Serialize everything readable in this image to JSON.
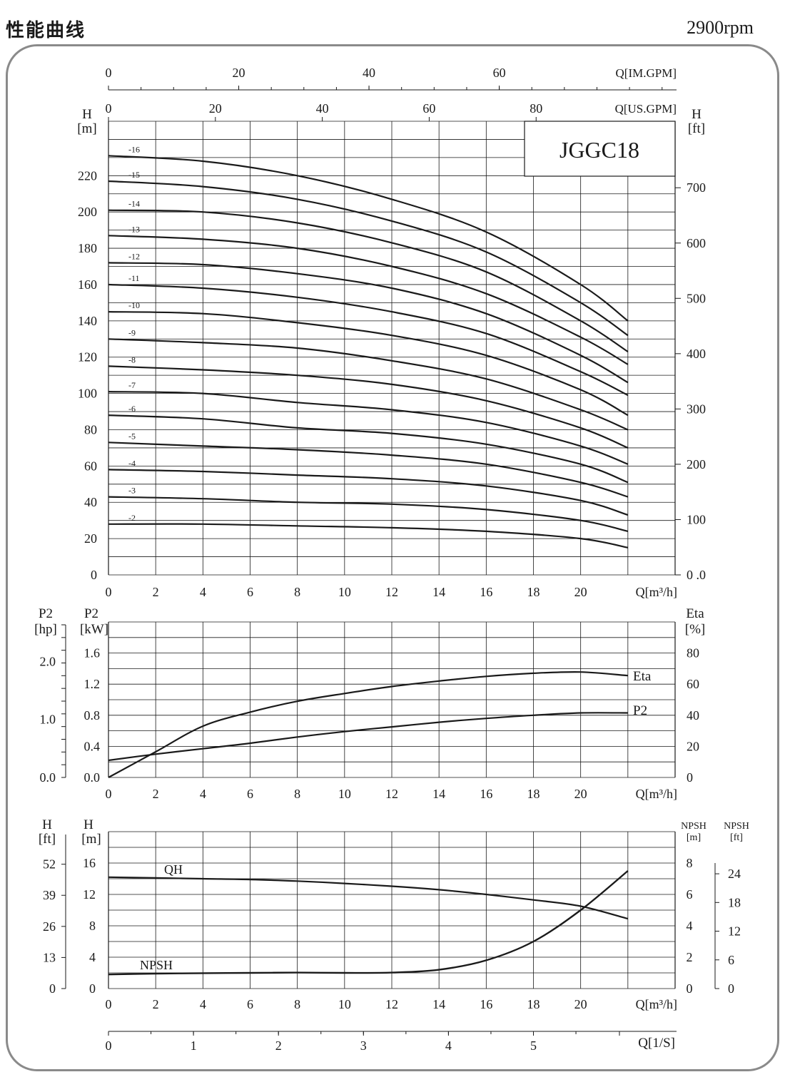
{
  "page": {
    "title": "性能曲线",
    "speed": "2900rpm"
  },
  "chart_data": [
    {
      "type": "line",
      "title": "JGGC18",
      "x_axis_label": "Q[m³/h]",
      "y_left_label": "H",
      "y_left_unit": "[m]",
      "y_right_label": "H",
      "y_right_unit": "[ft]",
      "top_axis_1_label": "Q[IM.GPM]",
      "top_axis_1_ticks": [
        "0",
        "20",
        "40",
        "60"
      ],
      "top_axis_2_label": "Q[US.GPM]",
      "top_axis_2_ticks": [
        "0",
        "20",
        "40",
        "60",
        "80"
      ],
      "xlim": [
        0,
        22
      ],
      "ylim": [
        0,
        250
      ],
      "x_ticks": [
        "0",
        "2",
        "4",
        "6",
        "8",
        "10",
        "12",
        "14",
        "16",
        "18",
        "20"
      ],
      "y_left_ticks": [
        "0",
        "20",
        "40",
        "60",
        "80",
        "100",
        "120",
        "140",
        "160",
        "180",
        "200",
        "220"
      ],
      "y_right_ticks": [
        "0 .0",
        "100",
        "200",
        "300",
        "400",
        "500",
        "600",
        "700"
      ],
      "x": [
        0,
        4,
        8,
        12,
        16,
        20,
        22
      ],
      "series": [
        {
          "name": "-16",
          "values": [
            231,
            228,
            220,
            207,
            189,
            160,
            140
          ]
        },
        {
          "name": "-15",
          "values": [
            217,
            214,
            207,
            195,
            178,
            150,
            132
          ]
        },
        {
          "name": "-14",
          "values": [
            201,
            200,
            194,
            183,
            167,
            140,
            123
          ]
        },
        {
          "name": "-13",
          "values": [
            187,
            185,
            180,
            170,
            155,
            131,
            116
          ]
        },
        {
          "name": "-12",
          "values": [
            172,
            171,
            166,
            158,
            144,
            121,
            106
          ]
        },
        {
          "name": "-11",
          "values": [
            160,
            158,
            153,
            145,
            133,
            112,
            99
          ]
        },
        {
          "name": "-10",
          "values": [
            145,
            144,
            139,
            132,
            121,
            102,
            88
          ]
        },
        {
          "name": "-9",
          "values": [
            130,
            128,
            125,
            118,
            108,
            91,
            80
          ]
        },
        {
          "name": "-8",
          "values": [
            115,
            113,
            110,
            105,
            96,
            81,
            70
          ]
        },
        {
          "name": "-7",
          "values": [
            101,
            100,
            95,
            91,
            84,
            71,
            61
          ]
        },
        {
          "name": "-6",
          "values": [
            88,
            86,
            81,
            78,
            72,
            61,
            51
          ]
        },
        {
          "name": "-5",
          "values": [
            73,
            71,
            69,
            66,
            61,
            51,
            43
          ]
        },
        {
          "name": "-4",
          "values": [
            58,
            57,
            55,
            53,
            49,
            41,
            33
          ]
        },
        {
          "name": "-3",
          "values": [
            43,
            42,
            40,
            39,
            36,
            30,
            24
          ]
        },
        {
          "name": "-2",
          "values": [
            28,
            28,
            27,
            26,
            24,
            20,
            15
          ]
        }
      ]
    },
    {
      "type": "line",
      "x_axis_label": "Q[m³/h]",
      "y_left_outer_label": "P2",
      "y_left_outer_unit": "[hp]",
      "y_left_label": "P2",
      "y_left_unit": "[kW]",
      "y_right_label": "Eta",
      "y_right_unit": "[%]",
      "xlim": [
        0,
        22
      ],
      "ylim": [
        0,
        1.6
      ],
      "x_ticks": [
        "0",
        "2",
        "4",
        "6",
        "8",
        "10",
        "12",
        "14",
        "16",
        "18",
        "20"
      ],
      "y_left_outer_ticks": [
        "0.0",
        "1.0",
        "2.0"
      ],
      "y_left_ticks": [
        "0.0",
        "0.4",
        "0.8",
        "1.2",
        "1.6"
      ],
      "y_right_ticks": [
        "0",
        "20",
        "40",
        "60",
        "80"
      ],
      "x": [
        0,
        2,
        4,
        6,
        8,
        10,
        12,
        14,
        16,
        18,
        20,
        22
      ],
      "series": [
        {
          "name": "Eta",
          "values": [
            0,
            16.5,
            33,
            42,
            49,
            54,
            58.5,
            62,
            65,
            67,
            67.8,
            65.5
          ]
        },
        {
          "name": "P2",
          "values": [
            0.22,
            0.3,
            0.37,
            0.44,
            0.52,
            0.59,
            0.65,
            0.71,
            0.76,
            0.8,
            0.83,
            0.83
          ]
        }
      ]
    },
    {
      "type": "line",
      "x_axis_label": "Q[m³/h]",
      "y_left_outer_label": "H",
      "y_left_outer_unit": "[ft]",
      "y_left_label": "H",
      "y_left_unit": "[m]",
      "y_right_label": "NPSH",
      "y_right_unit": "[m]",
      "y_right_outer_label": "NPSH",
      "y_right_outer_unit": "[ft]",
      "xlim": [
        0,
        22
      ],
      "ylim": [
        0,
        16
      ],
      "x_ticks": [
        "0",
        "2",
        "4",
        "6",
        "8",
        "10",
        "12",
        "14",
        "16",
        "18",
        "20"
      ],
      "y_left_outer_ticks": [
        "0",
        "13",
        "26",
        "39",
        "52"
      ],
      "y_left_ticks": [
        "0",
        "4",
        "8",
        "12",
        "16"
      ],
      "y_right_ticks": [
        "0",
        "2",
        "4",
        "6",
        "8"
      ],
      "y_right_outer_ticks": [
        "0",
        "6",
        "12",
        "18",
        "24"
      ],
      "bottom_axis_label": "Q[1/S]",
      "bottom_axis_ticks": [
        "0",
        "1",
        "2",
        "3",
        "4",
        "5"
      ],
      "x": [
        0,
        2,
        4,
        6,
        8,
        10,
        12,
        14,
        16,
        18,
        20,
        22
      ],
      "series": [
        {
          "name": "QH",
          "values": [
            14.2,
            14.1,
            14.0,
            13.9,
            13.7,
            13.4,
            13.05,
            12.6,
            12.0,
            11.3,
            10.5,
            8.9
          ]
        },
        {
          "name": "NPSH",
          "values": [
            0.9,
            0.95,
            0.98,
            1.0,
            1.02,
            1.0,
            1.02,
            1.2,
            1.8,
            3.0,
            5.0,
            7.5
          ]
        }
      ]
    }
  ]
}
